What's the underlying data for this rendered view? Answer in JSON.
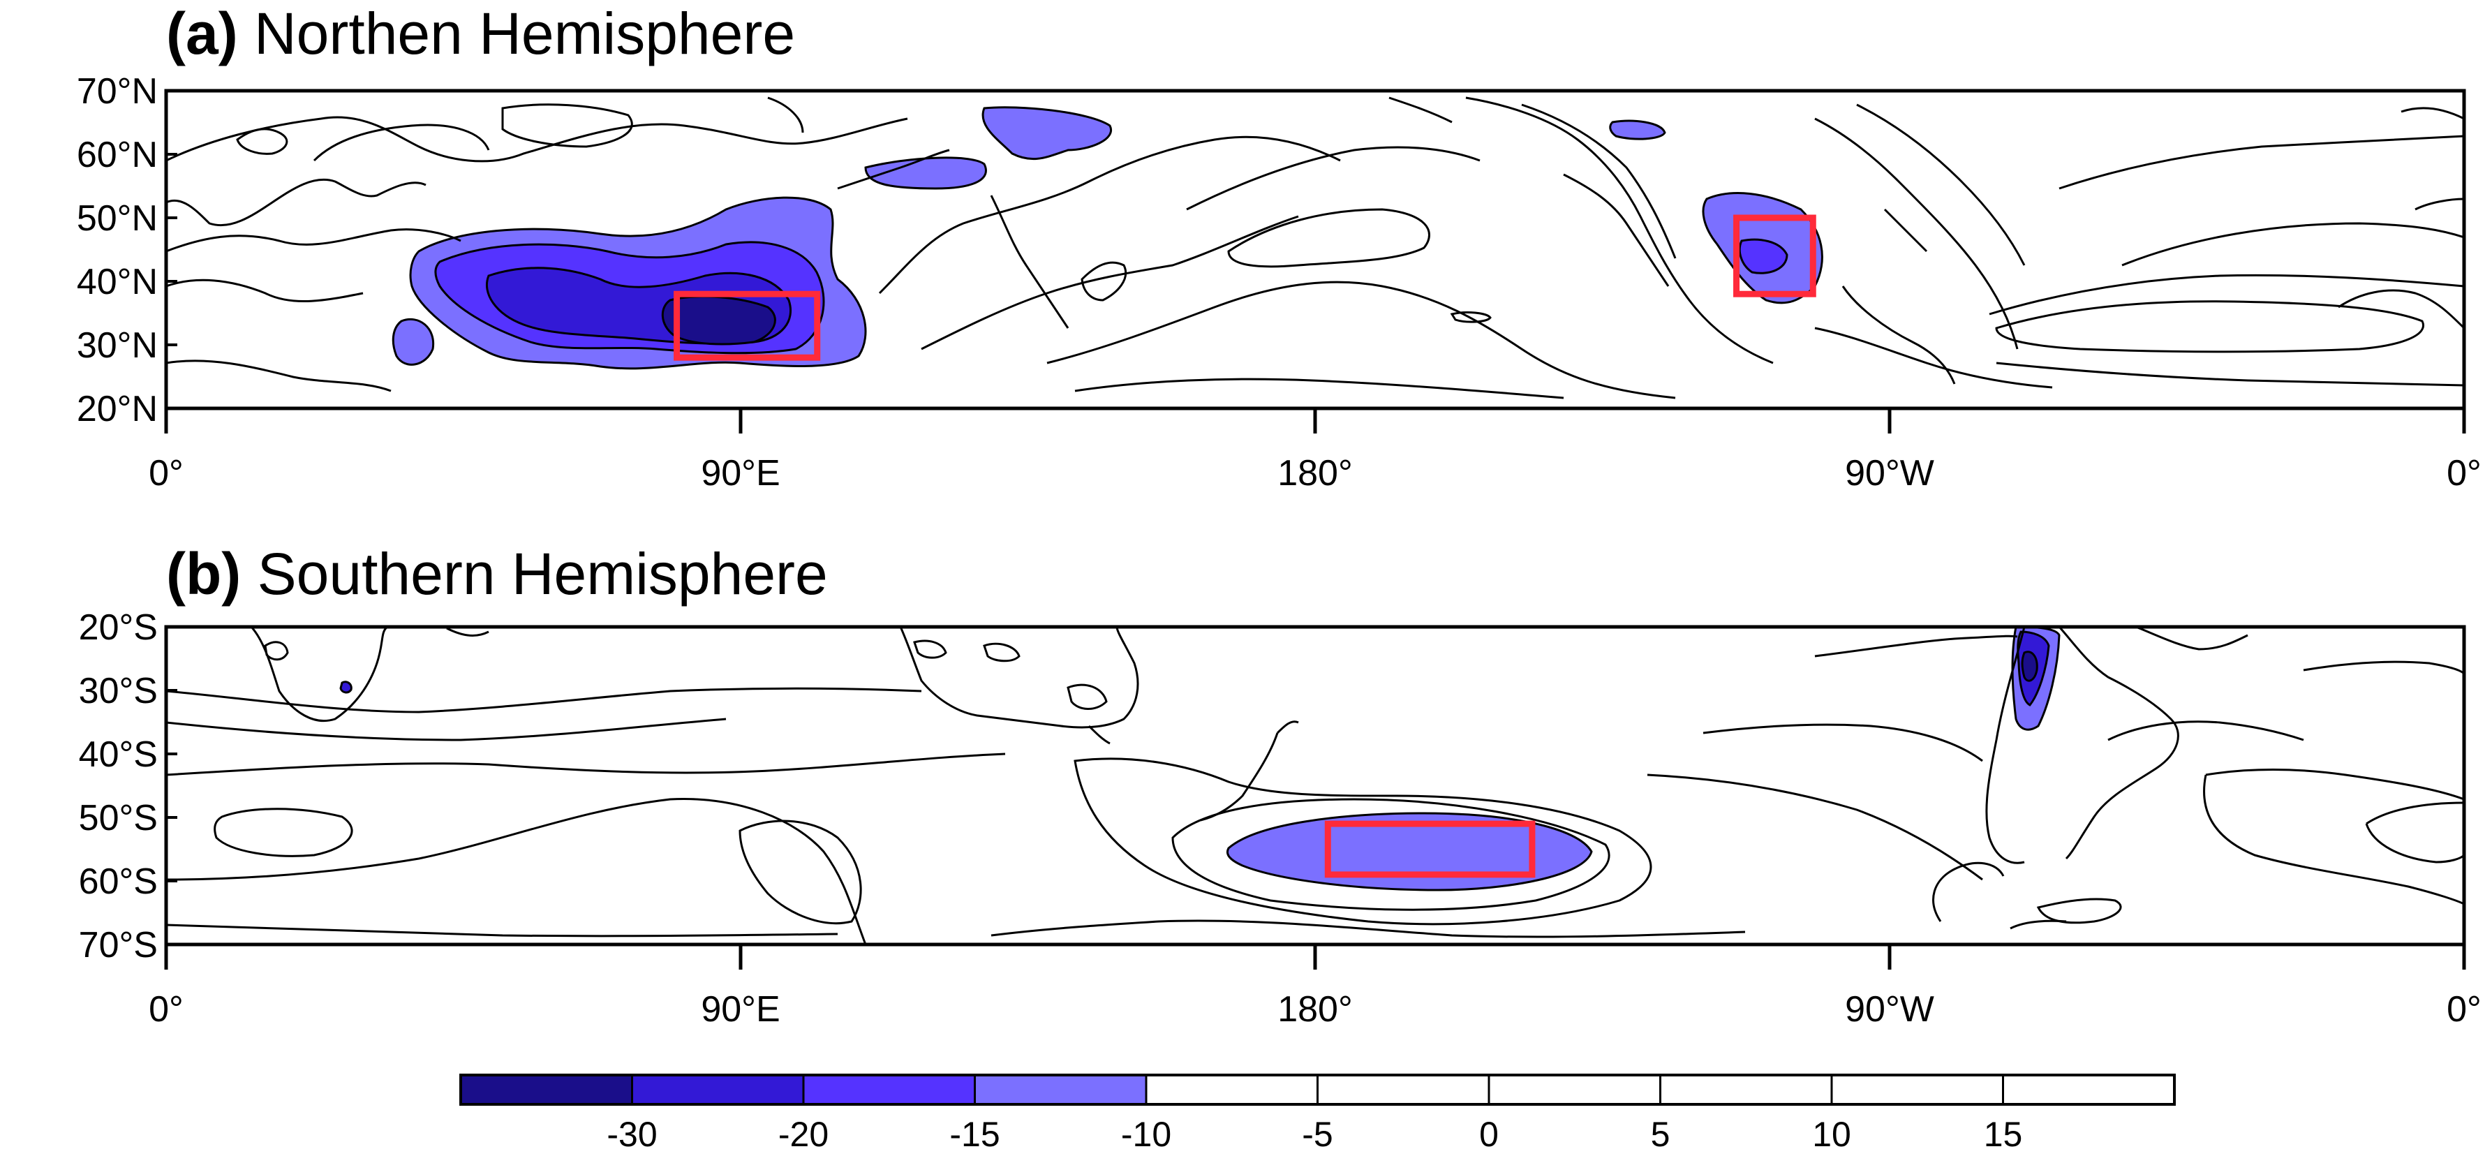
{
  "panels": [
    {
      "tag": "(a)",
      "title": "Northen Hemisphere",
      "lat_labels": [
        "70°N",
        "60°N",
        "50°N",
        "40°N",
        "30°N",
        "20°N"
      ],
      "lon_labels": [
        "0°",
        "90°E",
        "180°",
        "90°W",
        "0°"
      ],
      "lat_range": [
        20,
        70
      ],
      "lon_range": [
        0,
        360
      ],
      "highlight_boxes": [
        {
          "lon": [
            80,
            102
          ],
          "lat": [
            28,
            38
          ]
        },
        {
          "lon": [
            246,
            258
          ],
          "lat": [
            38,
            50
          ]
        }
      ]
    },
    {
      "tag": "(b)",
      "title": "Southern Hemisphere",
      "lat_labels": [
        "20°S",
        "30°S",
        "40°S",
        "50°S",
        "60°S",
        "70°S"
      ],
      "lon_labels": [
        "0°",
        "90°E",
        "180°",
        "90°W",
        "0°"
      ],
      "lat_range": [
        -70,
        -20
      ],
      "lon_range": [
        0,
        360
      ],
      "highlight_boxes": [
        {
          "lon": [
            182,
            214
          ],
          "lat": [
            -59,
            -51
          ]
        }
      ]
    }
  ],
  "colorbar": {
    "labels": [
      "-30",
      "-20",
      "-15",
      "-10",
      "-5",
      "0",
      "5",
      "10",
      "15"
    ],
    "colors": [
      "#1a0e8a",
      "#3319d6",
      "#5533ff",
      "#7b70ff",
      "#ffffff",
      "#ffffff",
      "#ffffff",
      "#ffffff",
      "#ffffff",
      "#ffffff"
    ]
  },
  "colors": {
    "box": "#ff2a3a",
    "contour": "#000000"
  }
}
